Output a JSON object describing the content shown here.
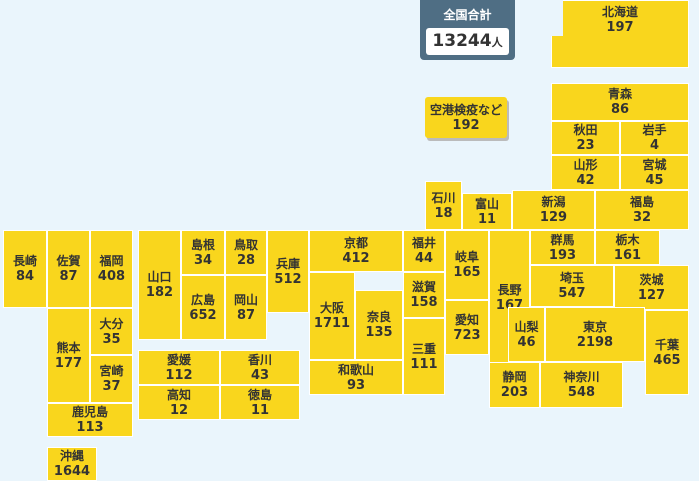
{
  "total": {
    "label": "全国合計",
    "value": 13244,
    "unit": "人"
  },
  "airport": {
    "label": "空港検疫など",
    "value": 192
  },
  "prefectures": [
    {
      "name": "北海道",
      "value": 197
    },
    {
      "name": "青森",
      "value": 86
    },
    {
      "name": "秋田",
      "value": 23
    },
    {
      "name": "岩手",
      "value": 4
    },
    {
      "name": "山形",
      "value": 42
    },
    {
      "name": "宮城",
      "value": 45
    },
    {
      "name": "福島",
      "value": 32
    },
    {
      "name": "新潟",
      "value": 129
    },
    {
      "name": "富山",
      "value": 11
    },
    {
      "name": "石川",
      "value": 18
    },
    {
      "name": "福井",
      "value": 44
    },
    {
      "name": "長野",
      "value": 167
    },
    {
      "name": "群馬",
      "value": 193
    },
    {
      "name": "栃木",
      "value": 161
    },
    {
      "name": "茨城",
      "value": 127
    },
    {
      "name": "埼玉",
      "value": 547
    },
    {
      "name": "千葉",
      "value": 465
    },
    {
      "name": "東京",
      "value": 2198
    },
    {
      "name": "神奈川",
      "value": 548
    },
    {
      "name": "山梨",
      "value": 46
    },
    {
      "name": "静岡",
      "value": 203
    },
    {
      "name": "岐阜",
      "value": 165
    },
    {
      "name": "愛知",
      "value": 723
    },
    {
      "name": "滋賀",
      "value": 158
    },
    {
      "name": "三重",
      "value": 111
    },
    {
      "name": "京都",
      "value": 412
    },
    {
      "name": "大阪",
      "value": 1711
    },
    {
      "name": "奈良",
      "value": 135
    },
    {
      "name": "和歌山",
      "value": 93
    },
    {
      "name": "兵庫",
      "value": 512
    },
    {
      "name": "鳥取",
      "value": 28
    },
    {
      "name": "島根",
      "value": 34
    },
    {
      "name": "岡山",
      "value": 87
    },
    {
      "name": "広島",
      "value": 652
    },
    {
      "name": "山口",
      "value": 182
    },
    {
      "name": "香川",
      "value": 43
    },
    {
      "name": "愛媛",
      "value": 112
    },
    {
      "name": "徳島",
      "value": 11
    },
    {
      "name": "高知",
      "value": 12
    },
    {
      "name": "福岡",
      "value": 408
    },
    {
      "name": "佐賀",
      "value": 87
    },
    {
      "name": "長崎",
      "value": 84
    },
    {
      "name": "大分",
      "value": 35
    },
    {
      "name": "熊本",
      "value": 177
    },
    {
      "name": "宮崎",
      "value": 37
    },
    {
      "name": "鹿児島",
      "value": 113
    },
    {
      "name": "沖縄",
      "value": 1644
    }
  ]
}
